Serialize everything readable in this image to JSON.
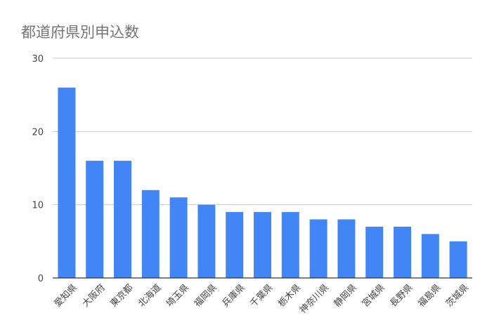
{
  "chart_data": {
    "type": "bar",
    "title": "都道府県別申込数",
    "xlabel": "",
    "ylabel": "",
    "categories": [
      "愛知県",
      "大阪府",
      "東京都",
      "北海道",
      "埼玉県",
      "福岡県",
      "兵庫県",
      "千葉県",
      "栃木県",
      "神奈川県",
      "静岡県",
      "宮城県",
      "長野県",
      "福島県",
      "茨城県"
    ],
    "values": [
      26,
      16,
      16,
      12,
      11,
      10,
      9,
      9,
      9,
      8,
      8,
      7,
      7,
      6,
      5
    ],
    "ylim": [
      0,
      30
    ],
    "yticks": [
      0,
      10,
      20,
      30
    ],
    "grid": true,
    "legend": "none",
    "bar_color": "#4285f4",
    "grid_color": "#cccccc",
    "axis_color": "#333333",
    "text_color": "#444444"
  }
}
